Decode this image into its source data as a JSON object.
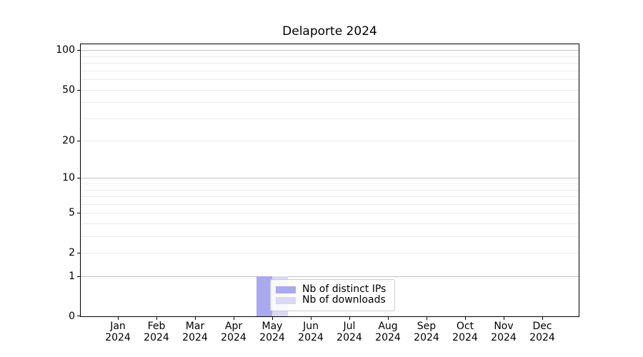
{
  "figure": {
    "background": "#ffffff"
  },
  "chart_data": {
    "type": "bar",
    "title": "Delaporte 2024",
    "categories": [
      "Jan",
      "Feb",
      "Mar",
      "Apr",
      "May",
      "Jun",
      "Jul",
      "Aug",
      "Sep",
      "Oct",
      "Nov",
      "Dec"
    ],
    "category_year": "2024",
    "series": [
      {
        "name": "Nb of distinct IPs",
        "color": "#a9a9ef",
        "values": [
          0,
          0,
          0,
          0,
          1,
          0,
          0,
          0,
          0,
          0,
          0,
          0
        ]
      },
      {
        "name": "Nb of downloads",
        "color": "#d9d9f4",
        "values": [
          0,
          0,
          0,
          0,
          1,
          0,
          0,
          0,
          0,
          0,
          0,
          0
        ]
      }
    ],
    "xlabel": "",
    "ylabel": "",
    "y_scale": "log1p",
    "ylim": [
      0,
      111
    ],
    "y_tick_labels": [
      0,
      1,
      2,
      5,
      10,
      20,
      50,
      100
    ],
    "y_major_gridlines": [
      1,
      10,
      100
    ],
    "y_minor_gridlines": [
      2,
      3,
      4,
      5,
      6,
      7,
      8,
      9,
      20,
      30,
      40,
      50,
      60,
      70,
      80,
      90
    ],
    "grid": true,
    "legend": {
      "position": "lower center",
      "entries": [
        "Nb of distinct IPs",
        "Nb of downloads"
      ]
    }
  }
}
